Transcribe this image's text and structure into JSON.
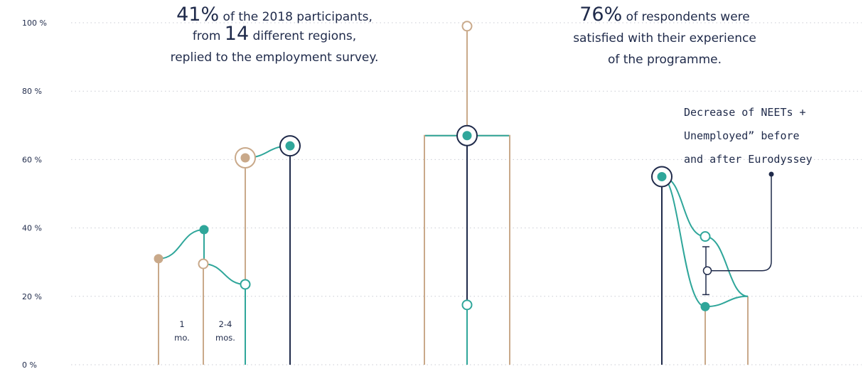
{
  "chart_data": {
    "type": "lollipop",
    "ylim": [
      0,
      100
    ],
    "yticks": [
      {
        "v": 0,
        "label": "0 %"
      },
      {
        "v": 20,
        "label": "20 %"
      },
      {
        "v": 40,
        "label": "40 %"
      },
      {
        "v": 60,
        "label": "60 %"
      },
      {
        "v": 80,
        "label": "80 %"
      },
      {
        "v": 100,
        "label": "100 %"
      }
    ],
    "colors": {
      "tan": "#c9a98a",
      "teal": "#2fa69a",
      "navy": "#1f2a4a",
      "grid": "#c9cbd3"
    },
    "group1": {
      "points": [
        {
          "value": 31,
          "color": "tan",
          "style": "filled"
        },
        {
          "value": 39.5,
          "color": "teal",
          "style": "filled"
        },
        {
          "value": 29.5,
          "color": "tan",
          "style": "hollow"
        },
        {
          "value": 23.5,
          "color": "teal",
          "style": "hollow"
        },
        {
          "value": 60.5,
          "color": "tan",
          "style": "ringed"
        },
        {
          "value": 64,
          "color": "teal",
          "style": "ringed-navy"
        }
      ]
    },
    "group2": {
      "points": [
        {
          "value": 99,
          "color": "tan",
          "style": "hollow"
        },
        {
          "value": 67,
          "color": "teal",
          "style": "ringed-navy"
        },
        {
          "value": 17.5,
          "color": "teal",
          "style": "hollow"
        }
      ],
      "box": [
        0,
        67
      ]
    },
    "group3": {
      "points": [
        {
          "value": 55,
          "color": "teal",
          "style": "ringed-navy"
        },
        {
          "value": 37.5,
          "color": "teal",
          "style": "hollow"
        },
        {
          "value": 17,
          "color": "teal",
          "style": "filled"
        },
        {
          "value": 20,
          "color": "tan",
          "style": "none"
        }
      ],
      "range": [
        34.5,
        20.5
      ],
      "mid": 27.5
    }
  },
  "annotations": {
    "left": {
      "pct1": "41",
      "pct1_sym": "%",
      "line1_rest": "of the 2018 participants,",
      "line2_pre": "from",
      "line2_num": "14",
      "line2_rest": "different regions,",
      "line3": "replied to the employment survey."
    },
    "right": {
      "pct": "76",
      "pct_sym": "%",
      "line1_rest": "of respondents were",
      "line2": "satisfied with their experience",
      "line3": "of the programme."
    },
    "note": {
      "line1": "Decrease of NEETs +",
      "line2": "Unemployed” before",
      "line3": "and after Eurodyssey"
    },
    "labels": {
      "m1_line1": "1",
      "m1_line2": "mo.",
      "m2_line1": "2-4",
      "m2_line2": "mos."
    }
  }
}
